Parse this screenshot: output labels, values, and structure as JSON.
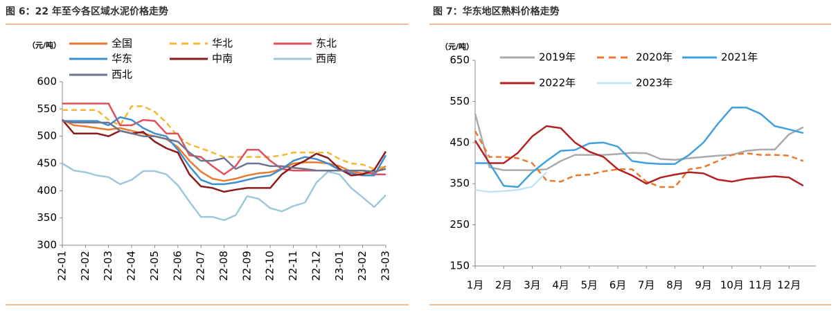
{
  "chart_data": [
    {
      "type": "line",
      "title": "图 6：22 年至今各区域水泥价格走势",
      "ylabel": "（元/吨）",
      "categories": [
        "22-01",
        null,
        "22-02",
        null,
        "22-03",
        null,
        "22-04",
        null,
        "22-05",
        null,
        "22-06",
        null,
        "22-07",
        null,
        "22-08",
        null,
        "22-09",
        null,
        "22-10",
        null,
        "22-11",
        null,
        "22-12",
        null,
        "23-01",
        null,
        "23-02",
        null,
        "23-03"
      ],
      "ylim": [
        300,
        600
      ],
      "yticks": [
        300,
        350,
        400,
        450,
        500,
        550,
        600
      ],
      "series": [
        {
          "name": "全国",
          "color": "#e97a2d",
          "values": [
            530,
            520,
            518,
            515,
            512,
            515,
            510,
            505,
            500,
            495,
            480,
            455,
            435,
            422,
            418,
            422,
            428,
            432,
            434,
            440,
            450,
            452,
            452,
            450,
            445,
            435,
            432,
            432,
            445
          ]
        },
        {
          "name": "华北",
          "color": "#f5b731",
          "dash": true,
          "values": [
            548,
            548,
            548,
            548,
            530,
            520,
            555,
            555,
            545,
            525,
            500,
            485,
            478,
            470,
            462,
            462,
            462,
            462,
            462,
            465,
            470,
            470,
            470,
            470,
            458,
            450,
            448,
            440,
            445
          ]
        },
        {
          "name": "东北",
          "color": "#e0505a",
          "values": [
            560,
            560,
            560,
            560,
            560,
            520,
            520,
            530,
            528,
            505,
            505,
            465,
            462,
            445,
            430,
            445,
            475,
            475,
            455,
            440,
            437,
            437,
            437,
            437,
            437,
            437,
            437,
            430,
            430
          ]
        },
        {
          "name": "华东",
          "color": "#3c8ed0",
          "values": [
            528,
            528,
            528,
            528,
            520,
            535,
            530,
            515,
            505,
            500,
            475,
            445,
            420,
            412,
            412,
            415,
            420,
            425,
            428,
            440,
            455,
            462,
            458,
            450,
            438,
            432,
            428,
            428,
            465
          ]
        },
        {
          "name": "中南",
          "color": "#8b1a1a",
          "values": [
            530,
            505,
            505,
            505,
            500,
            510,
            505,
            508,
            490,
            478,
            470,
            430,
            408,
            405,
            398,
            402,
            405,
            405,
            405,
            430,
            445,
            455,
            468,
            460,
            440,
            428,
            430,
            438,
            472
          ]
        },
        {
          "name": "西南",
          "color": "#9cc8d8",
          "values": [
            450,
            437,
            434,
            428,
            425,
            412,
            420,
            436,
            436,
            430,
            410,
            380,
            352,
            352,
            346,
            355,
            390,
            385,
            368,
            362,
            372,
            378,
            415,
            435,
            430,
            405,
            388,
            370,
            392
          ]
        },
        {
          "name": "西北",
          "color": "#6e7390",
          "values": [
            528,
            525,
            525,
            525,
            525,
            510,
            505,
            500,
            500,
            495,
            490,
            470,
            455,
            455,
            460,
            440,
            450,
            450,
            445,
            445,
            442,
            440,
            437,
            437,
            437,
            437,
            437,
            435,
            440
          ]
        }
      ]
    },
    {
      "type": "line",
      "title": "图 7：华东地区熟料价格走势",
      "ylabel": "（元/吨）",
      "categories": [
        "1月",
        null,
        "2月",
        null,
        "3月",
        null,
        "4月",
        null,
        "5月",
        null,
        "6月",
        null,
        "7月",
        null,
        "8月",
        null,
        "9月",
        null,
        "10月",
        null,
        "11月",
        null,
        "12月",
        null
      ],
      "ylim": [
        150,
        650
      ],
      "yticks": [
        150,
        250,
        350,
        450,
        550,
        650
      ],
      "series": [
        {
          "name": "2019年",
          "color": "#aaaaaa",
          "values": [
            520,
            390,
            383,
            383,
            383,
            385,
            405,
            420,
            420,
            420,
            422,
            425,
            424,
            410,
            408,
            412,
            415,
            418,
            420,
            430,
            433,
            433,
            470,
            487
          ]
        },
        {
          "name": "2020年",
          "color": "#e97a2d",
          "dash": true,
          "values": [
            478,
            415,
            415,
            412,
            400,
            358,
            355,
            370,
            372,
            380,
            385,
            385,
            355,
            342,
            342,
            385,
            390,
            405,
            420,
            424,
            420,
            420,
            418,
            405
          ]
        },
        {
          "name": "2021年",
          "color": "#3fa0e0",
          "values": [
            400,
            400,
            345,
            342,
            378,
            405,
            430,
            432,
            448,
            450,
            440,
            405,
            400,
            398,
            398,
            420,
            450,
            495,
            535,
            535,
            520,
            490,
            482,
            473
          ]
        },
        {
          "name": "2022年",
          "color": "#b22222",
          "values": [
            455,
            400,
            400,
            425,
            465,
            490,
            485,
            450,
            428,
            415,
            385,
            370,
            350,
            365,
            372,
            378,
            375,
            360,
            355,
            362,
            365,
            368,
            365,
            345
          ]
        },
        {
          "name": "2023年",
          "color": "#bde3f5",
          "values": [
            335,
            330,
            332,
            335,
            343,
            378,
            null,
            null,
            null,
            null,
            null,
            null,
            null,
            null,
            null,
            null,
            null,
            null,
            null,
            null,
            null,
            null,
            null,
            null
          ]
        }
      ]
    }
  ]
}
